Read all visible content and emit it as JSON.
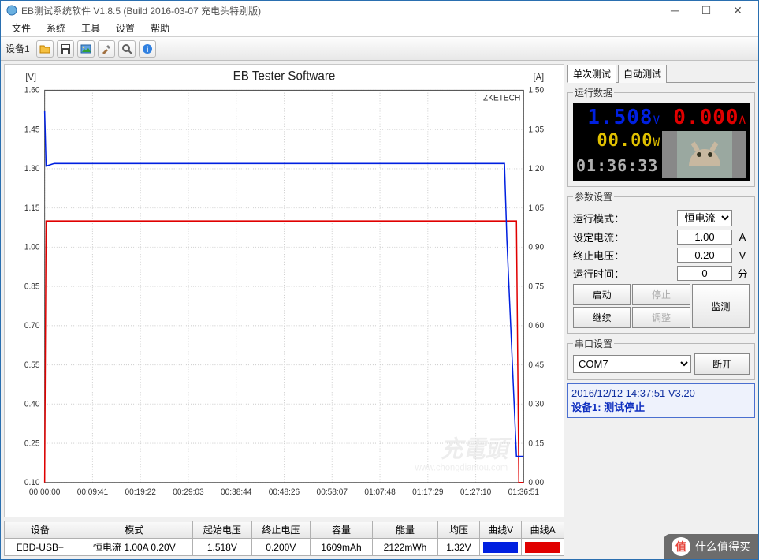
{
  "window": {
    "title": "EB测试系统软件 V1.8.5 (Build 2016-03-07 充电头特别版)"
  },
  "menus": [
    "文件",
    "系统",
    "工具",
    "设置",
    "帮助"
  ],
  "toolbar": {
    "device_label": "设备1",
    "icons": [
      "open-icon",
      "save-icon",
      "image-icon",
      "tools-icon",
      "zoom-icon",
      "info-icon"
    ]
  },
  "chart": {
    "title": "EB Tester Software",
    "brand": "ZKETECH",
    "watermark_main": "充電頭",
    "watermark_sub": "www.chongdiantou.com",
    "left_axis": {
      "label": "[V]",
      "min": 0.1,
      "max": 1.6,
      "step": 0.15,
      "ticks": [
        "0.10",
        "0.25",
        "0.40",
        "0.55",
        "0.70",
        "0.85",
        "1.00",
        "1.15",
        "1.30",
        "1.45",
        "1.60"
      ],
      "color": "#0020e0"
    },
    "right_axis": {
      "label": "[A]",
      "min": 0.0,
      "max": 1.5,
      "step": 0.15,
      "ticks": [
        "0.00",
        "0.15",
        "0.30",
        "0.45",
        "0.60",
        "0.75",
        "0.90",
        "1.05",
        "1.20",
        "1.35",
        "1.50"
      ],
      "color": "#e00000"
    },
    "x_axis": {
      "ticks": [
        "00:00:00",
        "00:09:41",
        "00:19:22",
        "00:29:03",
        "00:38:44",
        "00:48:26",
        "00:58:07",
        "01:07:48",
        "01:17:29",
        "01:27:10",
        "01:36:51"
      ]
    },
    "series_v": {
      "color": "#0020e0",
      "points": [
        [
          0,
          1.52
        ],
        [
          0.003,
          1.31
        ],
        [
          0.02,
          1.32
        ],
        [
          0.96,
          1.32
        ],
        [
          0.965,
          1.03
        ],
        [
          0.985,
          0.2
        ],
        [
          1,
          0.2
        ]
      ]
    },
    "series_a": {
      "color": "#e00000",
      "points": [
        [
          0,
          0.0
        ],
        [
          0.003,
          1.0
        ],
        [
          0.985,
          1.0
        ],
        [
          0.99,
          0.0
        ],
        [
          1,
          0.0
        ]
      ]
    },
    "background": "#ffffff",
    "grid_color": "#d0d0d0"
  },
  "table": {
    "headers": [
      "设备",
      "模式",
      "起始电压",
      "终止电压",
      "容量",
      "能量",
      "均压",
      "曲线V",
      "曲线A"
    ],
    "row": {
      "device": "EBD-USB+",
      "mode": "恒电流  1.00A  0.20V",
      "start_v": "1.518V",
      "end_v": "0.200V",
      "capacity": "1609mAh",
      "energy": "2122mWh",
      "avg_v": "1.32V",
      "color_v": "#0020e0",
      "color_a": "#e00000"
    }
  },
  "tabs": {
    "single": "单次测试",
    "auto": "自动测试"
  },
  "run_data": {
    "legend": "运行数据",
    "voltage": {
      "value": "1.508",
      "unit": "V",
      "color": "#0020e0"
    },
    "current": {
      "value": "0.000",
      "unit": "A",
      "color": "#e00000"
    },
    "power": {
      "value": "00.00",
      "unit": "W",
      "color": "#e0c000"
    },
    "time": {
      "value": "01:36:33",
      "color": "#b0b0b0"
    }
  },
  "params": {
    "legend": "参数设置",
    "mode_label": "运行模式：",
    "mode_value": "恒电流",
    "current_label": "设定电流：",
    "current_value": "1.00",
    "current_unit": "A",
    "cutoff_label": "终止电压：",
    "cutoff_value": "0.20",
    "cutoff_unit": "V",
    "time_label": "运行时间：",
    "time_value": "0",
    "time_unit": "分",
    "buttons": {
      "start": "启动",
      "stop": "停止",
      "continue": "继续",
      "adjust": "调整",
      "monitor": "监测"
    }
  },
  "serial": {
    "legend": "串口设置",
    "port": "COM7",
    "disconnect": "断开"
  },
  "status": {
    "line1": "2016/12/12  14:37:51   V3.20",
    "line2": "设备1: 测试停止"
  },
  "footer_watermark": "什么值得买"
}
